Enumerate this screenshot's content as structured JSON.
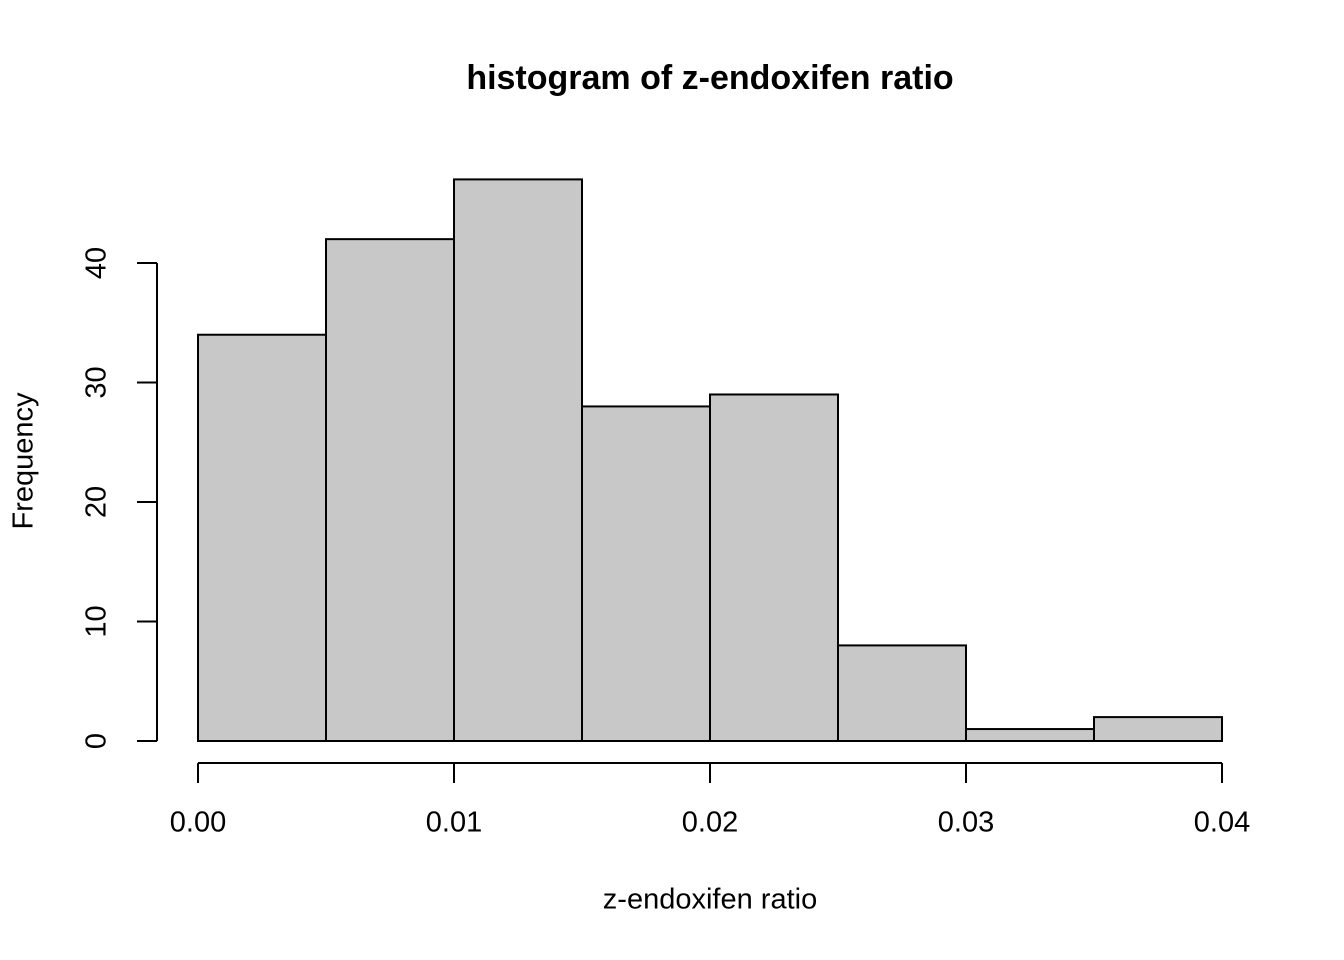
{
  "chart_data": {
    "type": "histogram",
    "title": "histogram of z-endoxifen ratio",
    "x_label": "z-endoxifen ratio",
    "y_label": "Frequency",
    "bins": [
      0,
      0.005,
      0.01,
      0.015,
      0.02,
      0.025,
      0.03,
      0.035,
      0.04
    ],
    "values": [
      34,
      42,
      47,
      28,
      29,
      8,
      1,
      2
    ],
    "color": "#c8c8c8",
    "edge_color": "#000000",
    "xlim": [
      0,
      0.04
    ],
    "xticks": [
      {
        "value": 0,
        "label": "0.00"
      },
      0.01,
      0.02,
      0.03,
      0.04
    ],
    "ylim": [
      0,
      47
    ],
    "yticks": [
      0,
      10,
      20,
      30,
      40
    ]
  }
}
